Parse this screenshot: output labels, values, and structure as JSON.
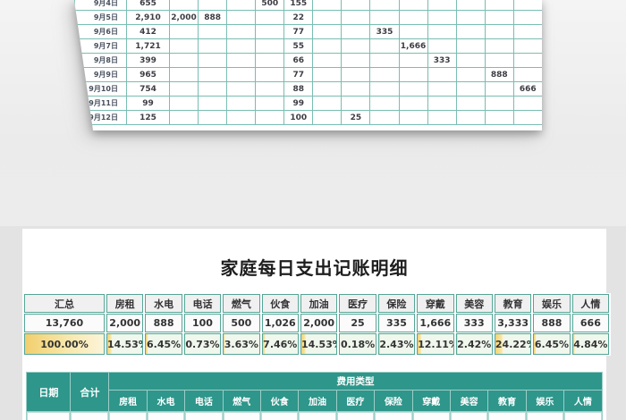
{
  "title": "家庭每日支出记账明细",
  "categories": [
    "房租",
    "水电",
    "电话",
    "燃气",
    "伙食",
    "加油",
    "医疗",
    "保险",
    "穿戴",
    "美容",
    "教育",
    "娱乐",
    "人情"
  ],
  "top_sheet": {
    "rows": [
      {
        "date": "9月4日",
        "total": "655",
        "values": [
          "",
          "",
          "",
          "500",
          "155",
          "",
          "",
          "",
          "",
          "",
          "",
          "",
          ""
        ]
      },
      {
        "date": "9月5日",
        "total": "2,910",
        "values": [
          "2,000",
          "888",
          "",
          "",
          "22",
          "",
          "",
          "",
          "",
          "",
          "",
          "",
          ""
        ]
      },
      {
        "date": "9月6日",
        "total": "412",
        "values": [
          "",
          "",
          "",
          "",
          "77",
          "",
          "",
          "335",
          "",
          "",
          "",
          "",
          ""
        ]
      },
      {
        "date": "9月7日",
        "total": "1,721",
        "values": [
          "",
          "",
          "",
          "",
          "55",
          "",
          "",
          "",
          "1,666",
          "",
          "",
          "",
          ""
        ]
      },
      {
        "date": "9月8日",
        "total": "399",
        "values": [
          "",
          "",
          "",
          "",
          "66",
          "",
          "",
          "",
          "",
          "333",
          "",
          "",
          ""
        ]
      },
      {
        "date": "9月9日",
        "total": "965",
        "values": [
          "",
          "",
          "",
          "",
          "77",
          "",
          "",
          "",
          "",
          "",
          "",
          "888",
          ""
        ]
      },
      {
        "date": "9月10日",
        "total": "754",
        "values": [
          "",
          "",
          "",
          "",
          "88",
          "",
          "",
          "",
          "",
          "",
          "",
          "",
          "666"
        ]
      },
      {
        "date": "9月11日",
        "total": "99",
        "values": [
          "",
          "",
          "",
          "",
          "99",
          "",
          "",
          "",
          "",
          "",
          "",
          "",
          ""
        ]
      },
      {
        "date": "9月12日",
        "total": "125",
        "values": [
          "",
          "",
          "",
          "",
          "100",
          "",
          "25",
          "",
          "",
          "",
          "",
          "",
          ""
        ]
      }
    ]
  },
  "summary": {
    "label": "汇总",
    "grand_total": "13,760",
    "totals": [
      "2,000",
      "888",
      "100",
      "500",
      "1,026",
      "2,000",
      "25",
      "335",
      "1,666",
      "333",
      "3,333",
      "888",
      "666"
    ],
    "grand_percent": "100.00%",
    "percents": [
      "14.53%",
      "6.45%",
      "0.73%",
      "3.63%",
      "7.46%",
      "14.53%",
      "0.18%",
      "2.43%",
      "12.11%",
      "2.42%",
      "24.22%",
      "6.45%",
      "4.84%"
    ],
    "percent_values": [
      14.53,
      6.45,
      0.73,
      3.63,
      7.46,
      14.53,
      0.18,
      2.43,
      12.11,
      2.42,
      24.22,
      6.45,
      4.84
    ]
  },
  "detail_header": {
    "date_label": "日期",
    "total_label": "合计",
    "group_label": "费用类型"
  },
  "colors": {
    "teal_header": "#2e968b",
    "sheet_grid": "#79bdb2",
    "summary_border": "#55a596",
    "bar_yellow": "#f2d373",
    "percent_bg": "#f0f7ed",
    "highlight_yellow": "#f2cf6d",
    "card_bg": "#ffffff",
    "page_bg": "#e3e3e3"
  }
}
